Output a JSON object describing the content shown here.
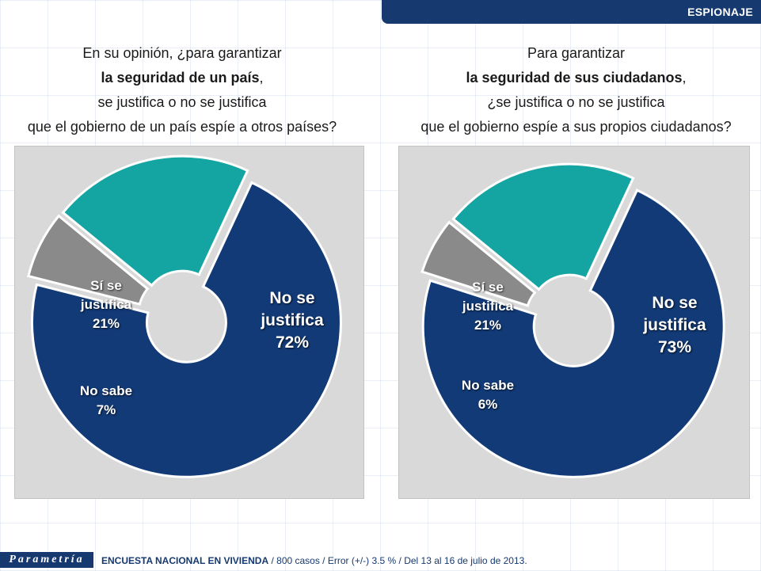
{
  "header": {
    "section_label": "ESPIONAJE"
  },
  "left_question": {
    "line1": "En su opinión, ¿para garantizar",
    "line2_bold": "la seguridad de un país",
    "line2_tail": ",",
    "line3": "se justifica o no se justifica",
    "line4": "que el gobierno de un país espíe a otros países?"
  },
  "right_question": {
    "line1": "Para garantizar",
    "line2_bold": "la seguridad de sus ciudadanos",
    "line2_tail": ",",
    "line3": "¿se justifica o no se justifica",
    "line4": "que el gobierno espíe a sus propios ciudadanos?"
  },
  "colors": {
    "no_se_justifica": "#123a77",
    "si_se_justifica": "#14a5a2",
    "no_sabe": "#8a8a8a",
    "panel_bg": "#d9d9d9",
    "brand": "#16396f"
  },
  "chart_data": [
    {
      "type": "pie",
      "variant": "donut",
      "slices": [
        {
          "label_line1": "No se",
          "label_line2": "justifica",
          "value": 72,
          "value_text": "72%",
          "color": "#123a77"
        },
        {
          "label_line1": "No sabe",
          "label_line2": "",
          "value": 7,
          "value_text": "7%",
          "color": "#8a8a8a"
        },
        {
          "label_line1": "Sí se",
          "label_line2": "justifica",
          "value": 21,
          "value_text": "21%",
          "color": "#14a5a2"
        }
      ]
    },
    {
      "type": "pie",
      "variant": "donut",
      "slices": [
        {
          "label_line1": "No se",
          "label_line2": "justifica",
          "value": 73,
          "value_text": "73%",
          "color": "#123a77"
        },
        {
          "label_line1": "No sabe",
          "label_line2": "",
          "value": 6,
          "value_text": "6%",
          "color": "#8a8a8a"
        },
        {
          "label_line1": "Sí se",
          "label_line2": "justifica",
          "value": 21,
          "value_text": "21%",
          "color": "#14a5a2"
        }
      ]
    }
  ],
  "footer": {
    "logo_text": "Parametría",
    "survey_bold": "ENCUESTA NACIONAL EN VIVIENDA",
    "survey_details": " / 800 casos / Error (+/-) 3.5 % / Del 13 al 16 de julio de 2013."
  }
}
